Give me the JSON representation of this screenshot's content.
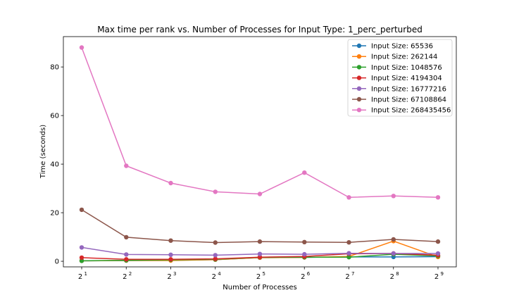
{
  "chart_data": {
    "type": "line",
    "title": "Max time per rank vs. Number of Processes for Input Type: 1_perc_perturbed",
    "xlabel": "Number of Processes",
    "ylabel": "Time (seconds)",
    "x_base": "2",
    "x_exponents": [
      1,
      2,
      3,
      4,
      5,
      6,
      7,
      8,
      9
    ],
    "x": [
      2,
      4,
      8,
      16,
      32,
      64,
      128,
      256,
      512
    ],
    "x_scale": "log2",
    "ylim": [
      -2.3,
      92.5
    ],
    "yticks": [
      0,
      20,
      40,
      60,
      80
    ],
    "grid": false,
    "legend_position": "top-right",
    "series": [
      {
        "name": "Input Size: 65536",
        "color": "#1f77b4",
        "values": [
          0.2,
          0.3,
          0.4,
          0.7,
          1.5,
          1.6,
          1.8,
          1.8,
          1.9
        ]
      },
      {
        "name": "Input Size: 262144",
        "color": "#ff7f0e",
        "values": [
          0.2,
          0.3,
          0.3,
          0.7,
          1.5,
          1.6,
          2.0,
          8.3,
          1.8
        ]
      },
      {
        "name": "Input Size: 1048576",
        "color": "#2ca02c",
        "values": [
          0.2,
          0.4,
          0.6,
          0.8,
          1.6,
          1.7,
          1.7,
          2.9,
          2.2
        ]
      },
      {
        "name": "Input Size: 4194304",
        "color": "#d62728",
        "values": [
          1.5,
          0.8,
          0.8,
          1.0,
          1.7,
          2.0,
          3.1,
          3.2,
          2.5
        ]
      },
      {
        "name": "Input Size: 16777216",
        "color": "#9467bd",
        "values": [
          5.7,
          2.8,
          2.7,
          2.5,
          3.0,
          2.9,
          3.3,
          3.2,
          3.2
        ]
      },
      {
        "name": "Input Size: 67108864",
        "color": "#8c564b",
        "values": [
          21.2,
          9.9,
          8.5,
          7.7,
          8.1,
          7.9,
          7.8,
          9.0,
          8.1
        ]
      },
      {
        "name": "Input Size: 268435456",
        "color": "#e377c2",
        "values": [
          88.0,
          39.3,
          32.2,
          28.6,
          27.7,
          36.5,
          26.3,
          26.9,
          26.3
        ]
      }
    ]
  }
}
